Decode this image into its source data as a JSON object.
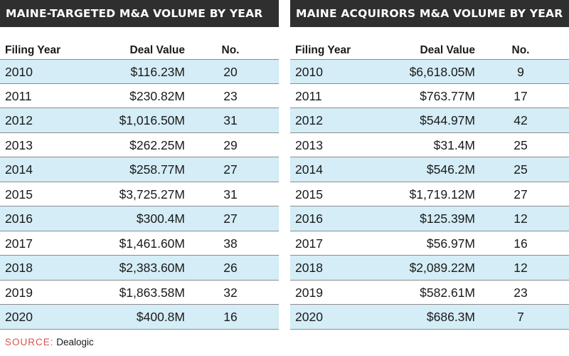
{
  "tables": [
    {
      "title": "MAINE-TARGETED M&A VOLUME BY YEAR",
      "columns": [
        "Filing Year",
        "Deal Value",
        "No."
      ],
      "rows": [
        [
          "2010",
          "$116.23M",
          "20"
        ],
        [
          "2011",
          "$230.82M",
          "23"
        ],
        [
          "2012",
          "$1,016.50M",
          "31"
        ],
        [
          "2013",
          "$262.25M",
          "29"
        ],
        [
          "2014",
          "$258.77M",
          "27"
        ],
        [
          "2015",
          "$3,725.27M",
          "31"
        ],
        [
          "2016",
          "$300.4M",
          "27"
        ],
        [
          "2017",
          "$1,461.60M",
          "38"
        ],
        [
          "2018",
          "$2,383.60M",
          "26"
        ],
        [
          "2019",
          "$1,863.58M",
          "32"
        ],
        [
          "2020",
          "$400.8M",
          "16"
        ]
      ]
    },
    {
      "title": "MAINE ACQUIRORS M&A VOLUME BY YEAR",
      "columns": [
        "Filing Year",
        "Deal Value",
        "No."
      ],
      "rows": [
        [
          "2010",
          "$6,618.05M",
          "9"
        ],
        [
          "2011",
          "$763.77M",
          "17"
        ],
        [
          "2012",
          "$544.97M",
          "42"
        ],
        [
          "2013",
          "$31.4M",
          "25"
        ],
        [
          "2014",
          "$546.2M",
          "25"
        ],
        [
          "2015",
          "$1,719.12M",
          "27"
        ],
        [
          "2016",
          "$125.39M",
          "12"
        ],
        [
          "2017",
          "$56.97M",
          "16"
        ],
        [
          "2018",
          "$2,089.22M",
          "12"
        ],
        [
          "2019",
          "$582.61M",
          "23"
        ],
        [
          "2020",
          "$686.3M",
          "7"
        ]
      ]
    }
  ],
  "source": {
    "label": "SOURCE:",
    "text": "Dealogic"
  },
  "colors": {
    "banner_bg": "#2f2f2f",
    "row_shade": "#d4edf6",
    "source_label": "#d9534f"
  },
  "chart_data": [
    {
      "type": "table",
      "title": "MAINE-TARGETED M&A VOLUME BY YEAR",
      "columns": [
        "Filing Year",
        "Deal Value",
        "No."
      ],
      "x": [
        2010,
        2011,
        2012,
        2013,
        2014,
        2015,
        2016,
        2017,
        2018,
        2019,
        2020
      ],
      "series": [
        {
          "name": "Deal Value",
          "values": [
            116.23,
            230.82,
            1016.5,
            262.25,
            258.77,
            3725.27,
            300.4,
            1461.6,
            2383.6,
            1863.58,
            400.8
          ]
        },
        {
          "name": "No.",
          "values": [
            20,
            23,
            31,
            29,
            27,
            31,
            27,
            38,
            26,
            32,
            16
          ]
        }
      ]
    },
    {
      "type": "table",
      "title": "MAINE ACQUIRORS M&A VOLUME BY YEAR",
      "columns": [
        "Filing Year",
        "Deal Value",
        "No."
      ],
      "x": [
        2010,
        2011,
        2012,
        2013,
        2014,
        2015,
        2016,
        2017,
        2018,
        2019,
        2020
      ],
      "series": [
        {
          "name": "Deal Value",
          "values": [
            6618.05,
            763.77,
            544.97,
            31.4,
            546.2,
            1719.12,
            125.39,
            56.97,
            2089.22,
            582.61,
            686.3
          ]
        },
        {
          "name": "No.",
          "values": [
            9,
            17,
            42,
            25,
            25,
            27,
            12,
            16,
            12,
            23,
            7
          ]
        }
      ]
    }
  ]
}
